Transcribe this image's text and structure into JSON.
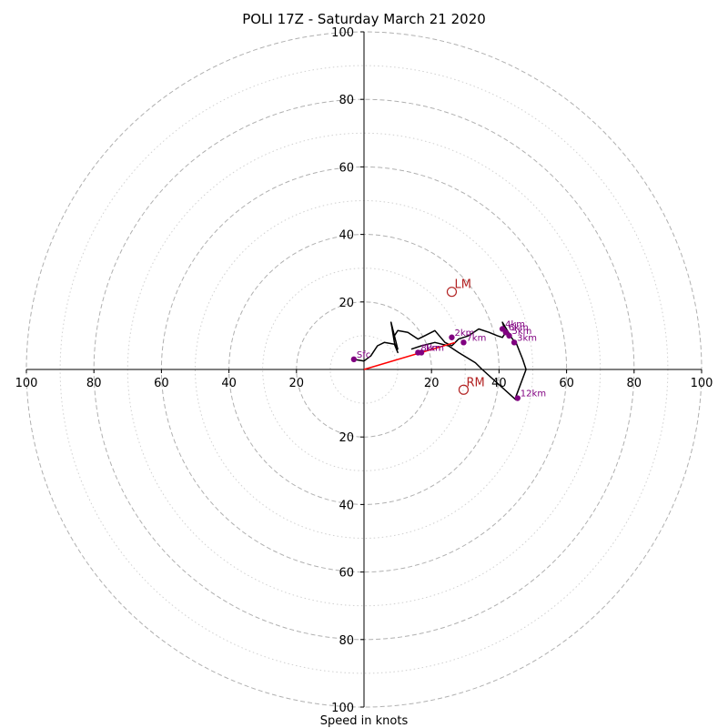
{
  "chart_data": {
    "type": "hodograph",
    "title": "POLI 17Z - Saturday March 21 2020",
    "xlabel": "Speed in knots",
    "range": [
      -100,
      100
    ],
    "axis_tick_labels": [
      "100",
      "80",
      "60",
      "40",
      "20",
      "20",
      "40",
      "60",
      "80",
      "100"
    ],
    "axis_tick_values": [
      -100,
      -80,
      -60,
      -40,
      -20,
      20,
      40,
      60,
      80,
      100
    ],
    "rings_dashed": [
      20,
      40,
      60,
      80,
      100
    ],
    "rings_dotted": [
      10,
      30,
      50,
      70,
      90
    ],
    "grid": true,
    "hodograph_line": [
      [
        -3,
        3
      ],
      [
        0,
        2.5
      ],
      [
        2,
        4
      ],
      [
        4,
        7
      ],
      [
        6,
        8
      ],
      [
        9,
        7.5
      ],
      [
        10,
        5
      ],
      [
        9,
        8
      ],
      [
        8,
        14
      ],
      [
        10,
        6
      ],
      [
        9,
        10
      ],
      [
        10,
        11.5
      ],
      [
        13,
        11
      ],
      [
        16,
        9
      ],
      [
        18,
        10
      ],
      [
        21,
        11.5
      ],
      [
        24,
        8
      ],
      [
        26,
        7
      ],
      [
        27,
        8
      ],
      [
        28,
        9
      ],
      [
        31,
        10
      ],
      [
        34,
        12
      ],
      [
        37,
        11
      ],
      [
        39.5,
        10
      ],
      [
        41,
        9.5
      ],
      [
        42,
        11
      ],
      [
        41,
        14
      ],
      [
        44,
        9
      ],
      [
        45,
        8
      ],
      [
        47,
        3
      ],
      [
        48,
        0
      ],
      [
        45,
        -8
      ],
      [
        45,
        -9
      ],
      [
        35,
        0
      ],
      [
        33,
        2
      ],
      [
        28,
        5
      ],
      [
        25,
        7
      ],
      [
        21,
        8
      ],
      [
        17,
        7
      ],
      [
        14,
        6
      ]
    ],
    "height_points": [
      {
        "label": "Sfc",
        "u": -3,
        "v": 3
      },
      {
        "label": "1km",
        "u": 17,
        "v": 5
      },
      {
        "label": "2km",
        "u": 26,
        "v": 9.5
      },
      {
        "label": "3km",
        "u": 44.5,
        "v": 8
      },
      {
        "label": "4km",
        "u": 41,
        "v": 12
      },
      {
        "label": "5km",
        "u": 43,
        "v": 10
      },
      {
        "label": "6km",
        "u": 42,
        "v": 11
      },
      {
        "label": "7km",
        "u": 29.5,
        "v": 8
      },
      {
        "label": "8km",
        "u": 16,
        "v": 5
      },
      {
        "label": "12km",
        "u": 45.5,
        "v": -8.5
      }
    ],
    "storm_motion": [
      {
        "label": "LM",
        "u": 26,
        "v": 23
      },
      {
        "label": "RM",
        "u": 29.5,
        "v": -6
      }
    ],
    "mean_wind_vector": {
      "u": 27,
      "v": 8
    },
    "colors": {
      "hodograph_line": "#000000",
      "height_points": "#800080",
      "storm_motion": "#b22222",
      "mean_wind_vector": "#ff0000",
      "grid": "#b0b0b0",
      "axes": "#000000"
    }
  }
}
